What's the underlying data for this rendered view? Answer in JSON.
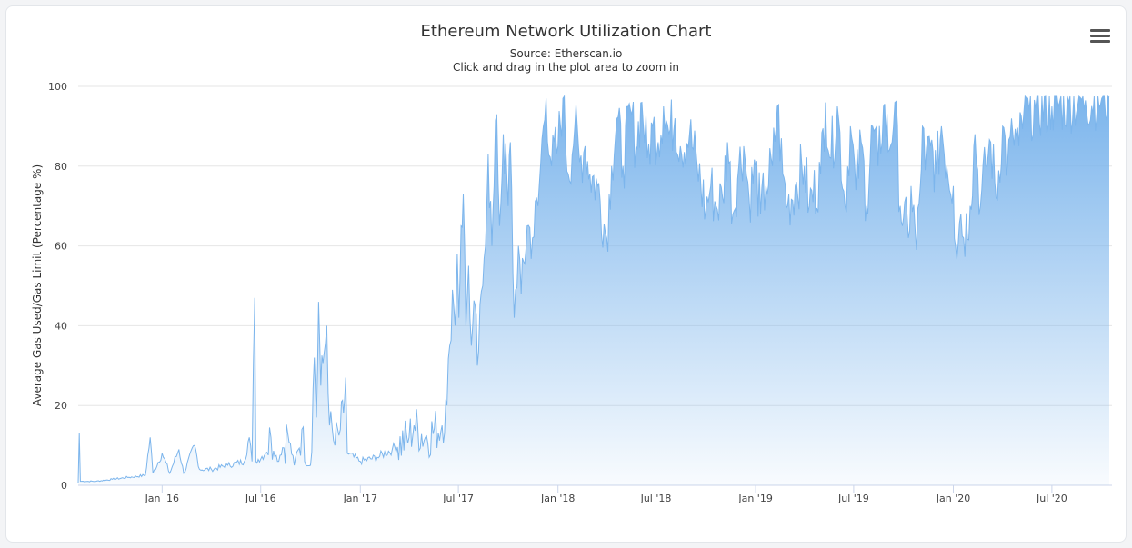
{
  "chart_data": {
    "type": "area",
    "title": "Ethereum Network Utilization Chart",
    "subtitle": "Source: Etherscan.io",
    "instruction": "Click and drag in the plot area to zoom in",
    "ylabel": "Average Gas Used/Gas Limit (Percentage %)",
    "xlabel": "",
    "ylim": [
      0,
      100
    ],
    "yticks": [
      0,
      20,
      40,
      60,
      80,
      100
    ],
    "xticks": [
      {
        "date": "2016-01-01",
        "label": "Jan '16"
      },
      {
        "date": "2016-07-01",
        "label": "Jul '16"
      },
      {
        "date": "2017-01-01",
        "label": "Jan '17"
      },
      {
        "date": "2017-07-01",
        "label": "Jul '17"
      },
      {
        "date": "2018-01-01",
        "label": "Jan '18"
      },
      {
        "date": "2018-07-01",
        "label": "Jul '18"
      },
      {
        "date": "2019-01-01",
        "label": "Jan '19"
      },
      {
        "date": "2019-07-01",
        "label": "Jul '19"
      },
      {
        "date": "2020-01-01",
        "label": "Jan '20"
      },
      {
        "date": "2020-07-01",
        "label": "Jul '20"
      }
    ],
    "xlim": [
      "2015-07-30",
      "2020-10-20"
    ],
    "grid": true,
    "legend": "none",
    "color": "#7cb5ec",
    "series": [
      {
        "points": [
          [
            "2015-07-30",
            0
          ],
          [
            "2015-08-01",
            13
          ],
          [
            "2015-08-03",
            1
          ],
          [
            "2015-09-01",
            1
          ],
          [
            "2015-10-01",
            1.5
          ],
          [
            "2015-11-01",
            2
          ],
          [
            "2015-12-01",
            2.5
          ],
          [
            "2015-12-10",
            12
          ],
          [
            "2015-12-15",
            3
          ],
          [
            "2016-01-01",
            8
          ],
          [
            "2016-01-15",
            3
          ],
          [
            "2016-02-01",
            9
          ],
          [
            "2016-02-10",
            3
          ],
          [
            "2016-03-01",
            10
          ],
          [
            "2016-03-10",
            4
          ],
          [
            "2016-04-01",
            4
          ],
          [
            "2016-05-01",
            5
          ],
          [
            "2016-06-01",
            6
          ],
          [
            "2016-06-10",
            12
          ],
          [
            "2016-06-15",
            6
          ],
          [
            "2016-06-20",
            47
          ],
          [
            "2016-06-22",
            6
          ],
          [
            "2016-07-10",
            8
          ],
          [
            "2016-07-20",
            12
          ],
          [
            "2016-08-01",
            6
          ],
          [
            "2016-08-20",
            13
          ],
          [
            "2016-09-01",
            5
          ],
          [
            "2016-09-15",
            14
          ],
          [
            "2016-09-20",
            6
          ],
          [
            "2016-10-01",
            5
          ],
          [
            "2016-10-08",
            32
          ],
          [
            "2016-10-12",
            17
          ],
          [
            "2016-10-16",
            46
          ],
          [
            "2016-10-20",
            25
          ],
          [
            "2016-10-26",
            33
          ],
          [
            "2016-10-31",
            40
          ],
          [
            "2016-11-05",
            15
          ],
          [
            "2016-11-15",
            10
          ],
          [
            "2016-11-25",
            14
          ],
          [
            "2016-12-01",
            18
          ],
          [
            "2016-12-05",
            27
          ],
          [
            "2016-12-08",
            8
          ],
          [
            "2017-01-01",
            6
          ],
          [
            "2017-02-01",
            7
          ],
          [
            "2017-03-01",
            9
          ],
          [
            "2017-04-01",
            12
          ],
          [
            "2017-04-10",
            15
          ],
          [
            "2017-05-01",
            12
          ],
          [
            "2017-06-01",
            15
          ],
          [
            "2017-06-10",
            20
          ],
          [
            "2017-06-15",
            35
          ],
          [
            "2017-06-20",
            49
          ],
          [
            "2017-06-25",
            40
          ],
          [
            "2017-06-29",
            58
          ],
          [
            "2017-07-02",
            42
          ],
          [
            "2017-07-06",
            65
          ],
          [
            "2017-07-10",
            73
          ],
          [
            "2017-07-15",
            40
          ],
          [
            "2017-07-20",
            55
          ],
          [
            "2017-07-25",
            35
          ],
          [
            "2017-08-01",
            45
          ],
          [
            "2017-08-05",
            30
          ],
          [
            "2017-08-15",
            50
          ],
          [
            "2017-08-25",
            83
          ],
          [
            "2017-09-01",
            60
          ],
          [
            "2017-09-05",
            75
          ],
          [
            "2017-09-10",
            93
          ],
          [
            "2017-09-15",
            65
          ],
          [
            "2017-09-22",
            88
          ],
          [
            "2017-10-01",
            70
          ],
          [
            "2017-10-05",
            86
          ],
          [
            "2017-10-12",
            42
          ],
          [
            "2017-10-20",
            60
          ],
          [
            "2017-10-25",
            48
          ],
          [
            "2017-11-05",
            65
          ],
          [
            "2017-11-15",
            62
          ],
          [
            "2017-11-25",
            70
          ],
          [
            "2017-12-05",
            90
          ],
          [
            "2017-12-10",
            97
          ],
          [
            "2017-12-20",
            80
          ],
          [
            "2018-01-01",
            85
          ],
          [
            "2018-01-10",
            97
          ],
          [
            "2018-01-20",
            78
          ],
          [
            "2018-02-01",
            90
          ],
          [
            "2018-02-10",
            81
          ],
          [
            "2018-02-20",
            85
          ],
          [
            "2018-03-01",
            78
          ],
          [
            "2018-03-15",
            75
          ],
          [
            "2018-04-01",
            62
          ],
          [
            "2018-04-10",
            80
          ],
          [
            "2018-04-20",
            92
          ],
          [
            "2018-05-01",
            80
          ],
          [
            "2018-05-15",
            94
          ],
          [
            "2018-05-25",
            85
          ],
          [
            "2018-06-05",
            96
          ],
          [
            "2018-06-15",
            82
          ],
          [
            "2018-06-25",
            90
          ],
          [
            "2018-07-05",
            86
          ],
          [
            "2018-07-15",
            95
          ],
          [
            "2018-07-25",
            88
          ],
          [
            "2018-08-05",
            92
          ],
          [
            "2018-08-15",
            85
          ],
          [
            "2018-09-01",
            88
          ],
          [
            "2018-09-15",
            80
          ],
          [
            "2018-10-01",
            69
          ],
          [
            "2018-10-10",
            75
          ],
          [
            "2018-10-20",
            70
          ],
          [
            "2018-11-01",
            72
          ],
          [
            "2018-11-10",
            86
          ],
          [
            "2018-11-20",
            68
          ],
          [
            "2018-12-01",
            80
          ],
          [
            "2018-12-10",
            85
          ],
          [
            "2018-12-20",
            72
          ],
          [
            "2019-01-01",
            80
          ],
          [
            "2019-01-10",
            68
          ],
          [
            "2019-01-20",
            75
          ],
          [
            "2019-02-01",
            80
          ],
          [
            "2019-02-10",
            95
          ],
          [
            "2019-02-20",
            78
          ],
          [
            "2019-03-01",
            70
          ],
          [
            "2019-03-15",
            75
          ],
          [
            "2019-04-01",
            80
          ],
          [
            "2019-04-10",
            70
          ],
          [
            "2019-05-01",
            78
          ],
          [
            "2019-05-10",
            96
          ],
          [
            "2019-05-20",
            82
          ],
          [
            "2019-06-01",
            95
          ],
          [
            "2019-06-15",
            70
          ],
          [
            "2019-06-25",
            90
          ],
          [
            "2019-07-05",
            74
          ],
          [
            "2019-07-15",
            86
          ],
          [
            "2019-07-25",
            70
          ],
          [
            "2019-08-05",
            90
          ],
          [
            "2019-08-15",
            80
          ],
          [
            "2019-08-25",
            95
          ],
          [
            "2019-09-05",
            84
          ],
          [
            "2019-09-15",
            96
          ],
          [
            "2019-09-25",
            70
          ],
          [
            "2019-10-01",
            67
          ],
          [
            "2019-10-10",
            62
          ],
          [
            "2019-10-15",
            75
          ],
          [
            "2019-10-25",
            59
          ],
          [
            "2019-11-01",
            75
          ],
          [
            "2019-11-05",
            90
          ],
          [
            "2019-11-10",
            79
          ],
          [
            "2019-11-20",
            85
          ],
          [
            "2019-12-01",
            78
          ],
          [
            "2019-12-10",
            90
          ],
          [
            "2019-12-20",
            80
          ],
          [
            "2020-01-01",
            75
          ],
          [
            "2020-01-05",
            60
          ],
          [
            "2020-01-15",
            68
          ],
          [
            "2020-01-20",
            62
          ],
          [
            "2020-02-01",
            70
          ],
          [
            "2020-02-10",
            88
          ],
          [
            "2020-02-20",
            70
          ],
          [
            "2020-03-01",
            80
          ],
          [
            "2020-03-10",
            86
          ],
          [
            "2020-03-20",
            72
          ],
          [
            "2020-04-01",
            90
          ],
          [
            "2020-04-10",
            80
          ],
          [
            "2020-04-20",
            88
          ],
          [
            "2020-05-01",
            85
          ],
          [
            "2020-05-10",
            93
          ],
          [
            "2020-05-20",
            94
          ],
          [
            "2020-06-01",
            94.5
          ],
          [
            "2020-07-01",
            95
          ],
          [
            "2020-08-01",
            96
          ],
          [
            "2020-09-01",
            96.5
          ],
          [
            "2020-10-01",
            97
          ],
          [
            "2020-10-15",
            97.3
          ]
        ]
      }
    ]
  }
}
